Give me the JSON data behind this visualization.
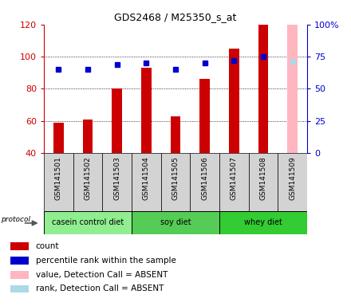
{
  "title": "GDS2468 / M25350_s_at",
  "samples": [
    "GSM141501",
    "GSM141502",
    "GSM141503",
    "GSM141504",
    "GSM141505",
    "GSM141506",
    "GSM141507",
    "GSM141508",
    "GSM141509"
  ],
  "count_values": [
    59,
    61,
    80,
    93,
    63,
    86,
    105,
    120,
    null
  ],
  "percentile_values": [
    65,
    65,
    69,
    70,
    65,
    70,
    72,
    75,
    71
  ],
  "absent_count_pct": [
    null,
    null,
    null,
    null,
    null,
    null,
    null,
    null,
    100
  ],
  "absent_rank_pct": [
    null,
    null,
    null,
    null,
    null,
    null,
    null,
    null,
    71
  ],
  "is_absent": [
    false,
    false,
    false,
    false,
    false,
    false,
    false,
    false,
    true
  ],
  "groups": [
    {
      "label": "casein control diet",
      "indices": [
        0,
        1,
        2
      ],
      "color": "#90EE90"
    },
    {
      "label": "soy diet",
      "indices": [
        3,
        4,
        5
      ],
      "color": "#50C850"
    },
    {
      "label": "whey diet",
      "indices": [
        6,
        7,
        8
      ],
      "color": "#32CD32"
    }
  ],
  "ylim_left": [
    40,
    120
  ],
  "ylim_right": [
    0,
    100
  ],
  "left_ticks": [
    40,
    60,
    80,
    100,
    120
  ],
  "right_ticks": [
    0,
    25,
    50,
    75,
    100
  ],
  "right_tick_labels": [
    "0",
    "25",
    "50",
    "75",
    "100%"
  ],
  "left_axis_color": "#CC0000",
  "right_axis_color": "#0000CC",
  "bar_color": "#CC0000",
  "absent_bar_color": "#FFB6C1",
  "dot_color": "#0000CC",
  "absent_dot_color": "#ADD8E6",
  "bar_width": 0.35,
  "background_color": "#ffffff",
  "grid_dotted_at": [
    60,
    80,
    100
  ],
  "group_colors": [
    "#90EE90",
    "#55CC55",
    "#33CC33"
  ],
  "sample_box_color": "#d3d3d3"
}
